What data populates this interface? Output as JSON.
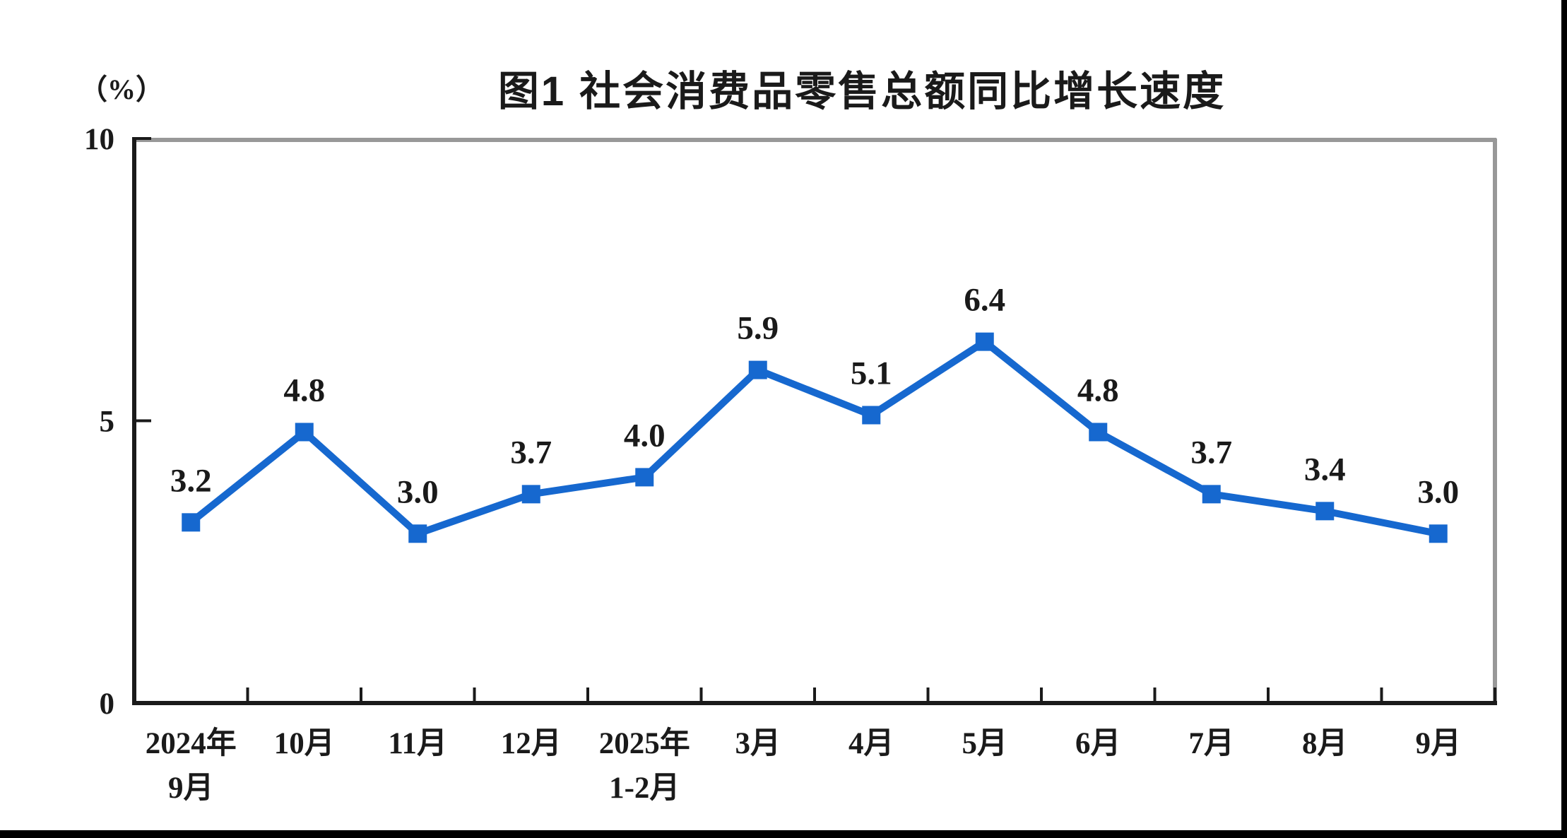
{
  "page": {
    "title": "图1  社会消费品零售总额同比增长速度",
    "unit_label": "（%）"
  },
  "chart_data": {
    "type": "line",
    "title": "图1  社会消费品零售总额同比增长速度",
    "ylabel": "（%）",
    "xlabel": "",
    "categories": [
      [
        "2024年",
        "9月"
      ],
      [
        "10月",
        ""
      ],
      [
        "11月",
        ""
      ],
      [
        "12月",
        ""
      ],
      [
        "2025年",
        "1-2月"
      ],
      [
        "3月",
        ""
      ],
      [
        "4月",
        ""
      ],
      [
        "5月",
        ""
      ],
      [
        "6月",
        ""
      ],
      [
        "7月",
        ""
      ],
      [
        "8月",
        ""
      ],
      [
        "9月",
        ""
      ]
    ],
    "values": [
      3.2,
      4.8,
      3.0,
      3.7,
      4.0,
      5.9,
      5.1,
      6.4,
      4.8,
      3.7,
      3.4,
      3.0
    ],
    "data_labels": [
      "3.2",
      "4.8",
      "3.0",
      "3.7",
      "4.0",
      "5.9",
      "5.1",
      "6.4",
      "4.8",
      "3.7",
      "3.4",
      "3.0"
    ],
    "ylim": [
      0,
      10
    ],
    "yticks": [
      0,
      5,
      10
    ],
    "grid": false,
    "legend": null,
    "series_name": "社会消费品零售总额同比增长速度",
    "colors": {
      "line": "#1668cf",
      "marker": "#1668cf",
      "axis": "#1a1a1a",
      "plot_border_gray": "#989898",
      "text": "#1a1a1a",
      "frame_bar": "#000000"
    }
  }
}
